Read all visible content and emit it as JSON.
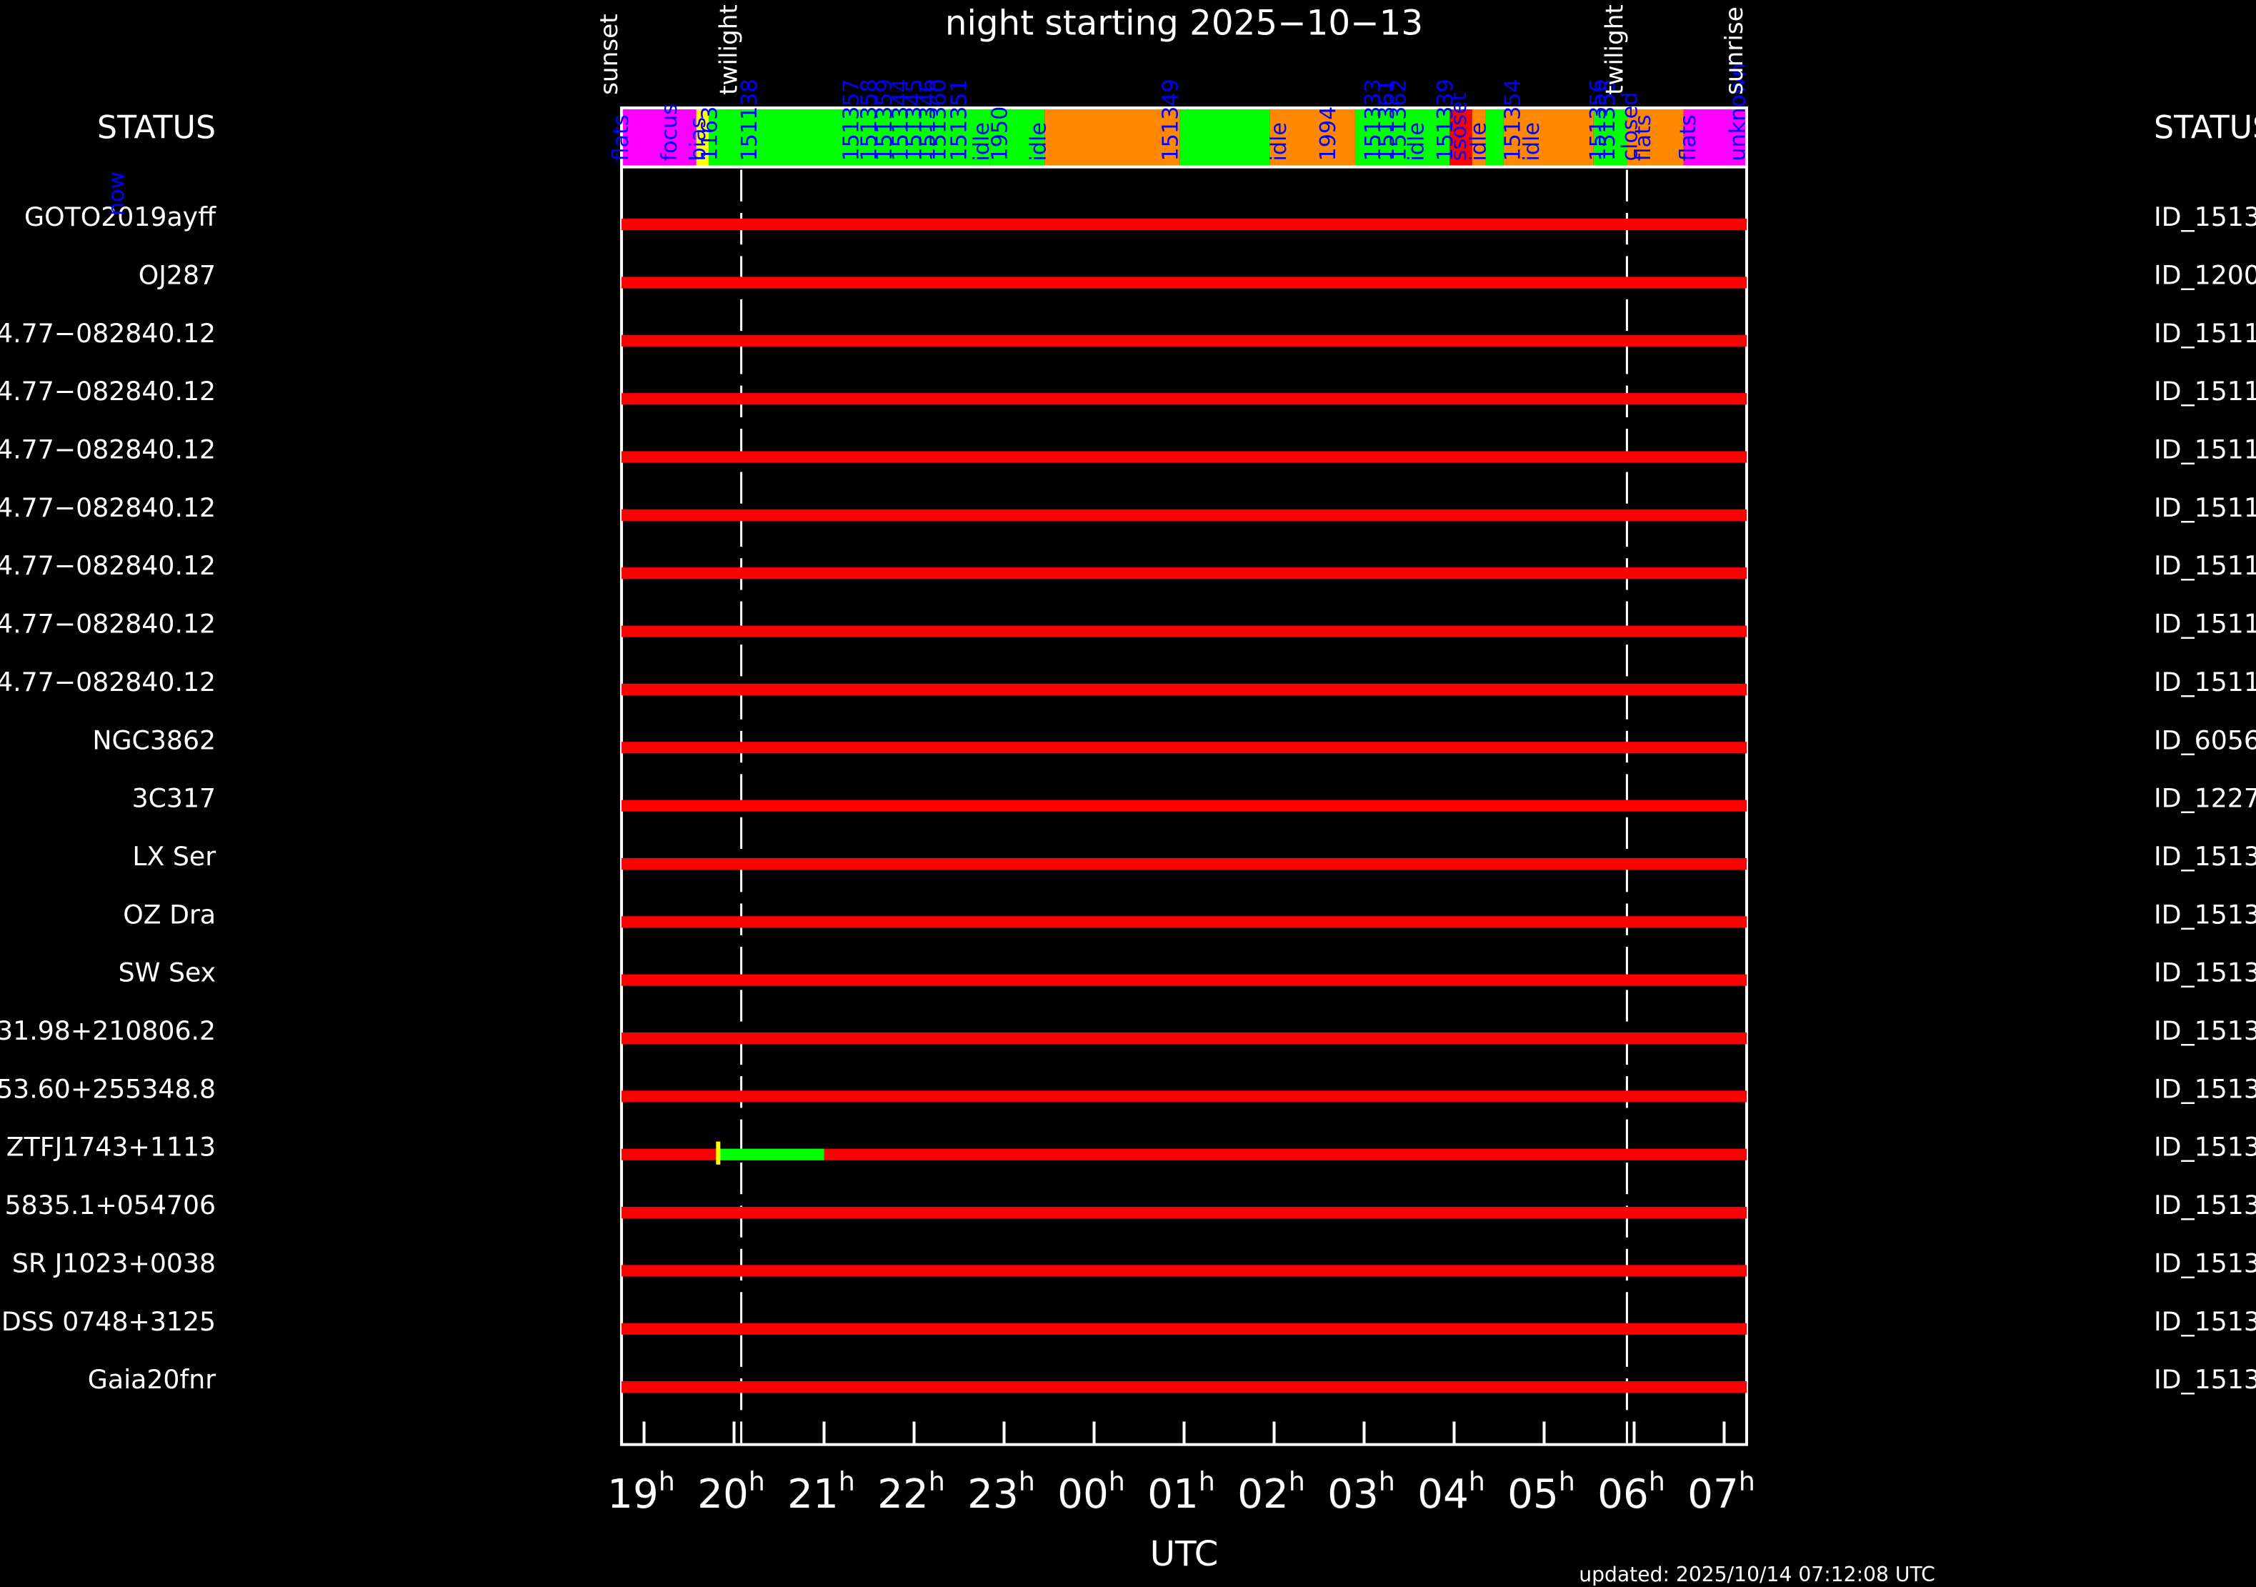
{
  "chart_data": {
    "type": "timeline",
    "title": "night starting 2025−10−13",
    "xlabel": "UTC",
    "updated": "updated: 2025/10/14 07:12:08 UTC",
    "status_left": "STATUS",
    "status_right": "STATUS",
    "time_range": [
      "18:45",
      "07:15"
    ],
    "ticks": [
      {
        "h": "19",
        "t": 19
      },
      {
        "h": "20",
        "t": 20
      },
      {
        "h": "21",
        "t": 21
      },
      {
        "h": "22",
        "t": 22
      },
      {
        "h": "23",
        "t": 23
      },
      {
        "h": "00",
        "t": 24
      },
      {
        "h": "01",
        "t": 25
      },
      {
        "h": "02",
        "t": 26
      },
      {
        "h": "03",
        "t": 27
      },
      {
        "h": "04",
        "t": 28
      },
      {
        "h": "05",
        "t": 29
      },
      {
        "h": "06",
        "t": 30
      },
      {
        "h": "07",
        "t": 31
      }
    ],
    "events": [
      {
        "label": "sunset",
        "t": 18.75,
        "color": "#ffffff"
      },
      {
        "label": "twilight",
        "t": 20.08,
        "color": "#ffffff",
        "dashed": true
      },
      {
        "label": "twilight",
        "t": 29.92,
        "color": "#ffffff",
        "dashed": true
      },
      {
        "label": "sunrise",
        "t": 31.25,
        "color": "#ffffff"
      }
    ],
    "colors": {
      "flats": "#ff00ff",
      "focus": "#ffff00",
      "observing": "#00ff00",
      "closed": "#ff8800",
      "error": "#ff0000",
      "unobserved": "#ff0000",
      "label": "#0000ff"
    },
    "status_bar": [
      {
        "start": 18.75,
        "end": 19.4,
        "color": "#ff00ff",
        "label": "flats"
      },
      {
        "start": 19.4,
        "end": 19.58,
        "color": "#ff00ff",
        "label": "focus"
      },
      {
        "start": 19.58,
        "end": 19.72,
        "color": "#ffff00",
        "label": ""
      },
      {
        "start": 19.72,
        "end": 19.92,
        "color": "#00ff00",
        "label": "bias"
      },
      {
        "start": 19.92,
        "end": 20.08,
        "color": "#00ff00",
        "label": "1163"
      },
      {
        "start": 20.08,
        "end": 22.85,
        "color": "#00ff00",
        "label": ""
      },
      {
        "start": 22.85,
        "end": 23.45,
        "color": "#00ff00",
        "label": "idle"
      },
      {
        "start": 23.45,
        "end": 24.95,
        "color": "#ff8800",
        "label": ""
      },
      {
        "start": 24.95,
        "end": 25.95,
        "color": "#00ff00",
        "label": ""
      },
      {
        "start": 25.95,
        "end": 26.9,
        "color": "#ff8800",
        "label": ""
      },
      {
        "start": 26.9,
        "end": 27.95,
        "color": "#00ff00",
        "label": ""
      },
      {
        "start": 27.95,
        "end": 28.2,
        "color": "#ff0000",
        "label": "idle"
      },
      {
        "start": 28.2,
        "end": 28.35,
        "color": "#ff8800",
        "label": ""
      },
      {
        "start": 28.35,
        "end": 28.55,
        "color": "#00ff00",
        "label": "idle"
      },
      {
        "start": 28.55,
        "end": 29.55,
        "color": "#ff8800",
        "label": ""
      },
      {
        "start": 29.55,
        "end": 29.92,
        "color": "#00ff00",
        "label": ""
      },
      {
        "start": 29.92,
        "end": 30.55,
        "color": "#ff8800",
        "label": "closed"
      },
      {
        "start": 30.55,
        "end": 31.0,
        "color": "#ff00ff",
        "label": "flats"
      },
      {
        "start": 31.0,
        "end": 31.25,
        "color": "#ff00ff",
        "label": "unknown"
      }
    ],
    "bar_labels": [
      {
        "t": 18.74,
        "text": "flats"
      },
      {
        "t": 19.28,
        "text": "focus"
      },
      {
        "t": 19.6,
        "text": "bias"
      },
      {
        "t": 19.73,
        "text": "1163"
      },
      {
        "t": 20.17,
        "text": "151138"
      },
      {
        "t": 21.3,
        "text": "151357"
      },
      {
        "t": 21.5,
        "text": "151358"
      },
      {
        "t": 21.67,
        "text": "151359"
      },
      {
        "t": 21.85,
        "text": "151344"
      },
      {
        "t": 22.0,
        "text": "151345"
      },
      {
        "t": 22.15,
        "text": "151346"
      },
      {
        "t": 22.27,
        "text": "151360"
      },
      {
        "t": 22.5,
        "text": "151351"
      },
      {
        "t": 22.75,
        "text": "idle"
      },
      {
        "t": 22.95,
        "text": "1950"
      },
      {
        "t": 23.38,
        "text": "idle"
      },
      {
        "t": 24.85,
        "text": "151349"
      },
      {
        "t": 26.05,
        "text": "idle"
      },
      {
        "t": 26.6,
        "text": "1994"
      },
      {
        "t": 27.1,
        "text": "151333"
      },
      {
        "t": 27.25,
        "text": "151361"
      },
      {
        "t": 27.38,
        "text": "151362"
      },
      {
        "t": 27.58,
        "text": "idle"
      },
      {
        "t": 27.9,
        "text": "151339"
      },
      {
        "t": 28.05,
        "text": "ssoset"
      },
      {
        "t": 28.27,
        "text": "idle"
      },
      {
        "t": 28.65,
        "text": "151354"
      },
      {
        "t": 28.86,
        "text": "idle"
      },
      {
        "t": 29.6,
        "text": "151356"
      },
      {
        "t": 29.7,
        "text": "151355"
      },
      {
        "t": 29.95,
        "text": "closed"
      },
      {
        "t": 30.1,
        "text": "flats"
      },
      {
        "t": 30.6,
        "text": "flats"
      },
      {
        "t": 31.15,
        "text": "unknown"
      }
    ],
    "now_label": "now",
    "targets": [
      {
        "name": "GOTO2019ayff",
        "id": "ID_1513"
      },
      {
        "name": "OJ287",
        "id": "ID_1200"
      },
      {
        "name": "4.77−082840.12",
        "id": "ID_1511"
      },
      {
        "name": "4.77−082840.12",
        "id": "ID_1511"
      },
      {
        "name": "4.77−082840.12",
        "id": "ID_1511"
      },
      {
        "name": "4.77−082840.12",
        "id": "ID_1511"
      },
      {
        "name": "4.77−082840.12",
        "id": "ID_1511"
      },
      {
        "name": "4.77−082840.12",
        "id": "ID_1511"
      },
      {
        "name": "4.77−082840.12",
        "id": "ID_1511"
      },
      {
        "name": "NGC3862",
        "id": "ID_6056"
      },
      {
        "name": "3C317",
        "id": "ID_1227"
      },
      {
        "name": "LX Ser",
        "id": "ID_1513"
      },
      {
        "name": "OZ Dra",
        "id": "ID_1513"
      },
      {
        "name": "SW Sex",
        "id": "ID_1513"
      },
      {
        "name": "31.98+210806.2",
        "id": "ID_1513"
      },
      {
        "name": "53.60+255348.8",
        "id": "ID_1513"
      },
      {
        "name": "ZTFJ1743+1113",
        "id": "ID_1513",
        "observed": [
          19.8,
          21.0
        ]
      },
      {
        "name": "5835.1+054706",
        "id": "ID_1513"
      },
      {
        "name": "SR J1023+0038",
        "id": "ID_1513"
      },
      {
        "name": "DSS 0748+3125",
        "id": "ID_1513"
      },
      {
        "name": "Gaia20fnr",
        "id": "ID_1513"
      }
    ]
  }
}
